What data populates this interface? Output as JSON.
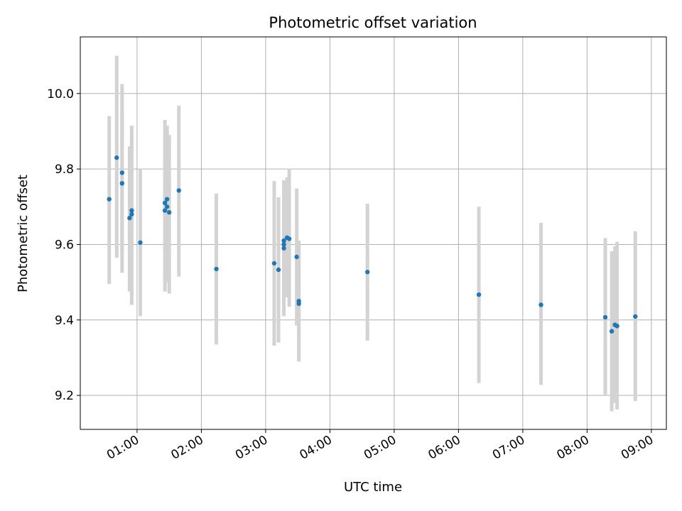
{
  "chart_data": {
    "type": "scatter",
    "title": "Photometric offset variation",
    "xlabel": "UTC time",
    "ylabel": "Photometric offset",
    "grid": true,
    "xlim": [
      "00:07",
      "09:14"
    ],
    "ylim": [
      9.11,
      10.15
    ],
    "x_ticks": [
      "01:00",
      "02:00",
      "03:00",
      "04:00",
      "05:00",
      "06:00",
      "07:00",
      "08:00",
      "09:00"
    ],
    "y_ticks": [
      "9.2",
      "9.4",
      "9.6",
      "9.8",
      "10.0"
    ],
    "marker_color": "#1f77b4",
    "errorbar_color": "#d3d3d3",
    "points": [
      {
        "t": "00:34",
        "y": 9.72,
        "lo": 9.495,
        "hi": 9.94
      },
      {
        "t": "00:41",
        "y": 9.83,
        "lo": 9.565,
        "hi": 10.1
      },
      {
        "t": "00:46",
        "y": 9.79,
        "lo": 9.575,
        "hi": 10.025
      },
      {
        "t": "00:46",
        "y": 9.762,
        "lo": 9.525,
        "hi": 9.96
      },
      {
        "t": "00:53",
        "y": 9.67,
        "lo": 9.475,
        "hi": 9.86
      },
      {
        "t": "00:55",
        "y": 9.69,
        "lo": 9.44,
        "hi": 9.915
      },
      {
        "t": "00:55",
        "y": 9.68,
        "lo": 9.47,
        "hi": 9.9
      },
      {
        "t": "01:03",
        "y": 9.605,
        "lo": 9.41,
        "hi": 9.8
      },
      {
        "t": "01:26",
        "y": 9.71,
        "lo": 9.475,
        "hi": 9.93
      },
      {
        "t": "01:26",
        "y": 9.69,
        "lo": 9.49,
        "hi": 9.905
      },
      {
        "t": "01:28",
        "y": 9.72,
        "lo": 9.52,
        "hi": 9.915
      },
      {
        "t": "01:28",
        "y": 9.7,
        "lo": 9.5,
        "hi": 9.9
      },
      {
        "t": "01:30",
        "y": 9.685,
        "lo": 9.47,
        "hi": 9.89
      },
      {
        "t": "01:39",
        "y": 9.743,
        "lo": 9.515,
        "hi": 9.968
      },
      {
        "t": "02:14",
        "y": 9.535,
        "lo": 9.335,
        "hi": 9.735
      },
      {
        "t": "03:08",
        "y": 9.55,
        "lo": 9.332,
        "hi": 9.768
      },
      {
        "t": "03:12",
        "y": 9.533,
        "lo": 9.34,
        "hi": 9.725
      },
      {
        "t": "03:17",
        "y": 9.61,
        "lo": 9.43,
        "hi": 9.77
      },
      {
        "t": "03:17",
        "y": 9.6,
        "lo": 9.42,
        "hi": 9.76
      },
      {
        "t": "03:17",
        "y": 9.59,
        "lo": 9.41,
        "hi": 9.755
      },
      {
        "t": "03:20",
        "y": 9.618,
        "lo": 9.46,
        "hi": 9.778
      },
      {
        "t": "03:22",
        "y": 9.615,
        "lo": 9.435,
        "hi": 9.8
      },
      {
        "t": "03:29",
        "y": 9.567,
        "lo": 9.385,
        "hi": 9.748
      },
      {
        "t": "03:31",
        "y": 9.45,
        "lo": 9.29,
        "hi": 9.61
      },
      {
        "t": "03:31",
        "y": 9.443,
        "lo": 9.29,
        "hi": 9.6
      },
      {
        "t": "04:35",
        "y": 9.527,
        "lo": 9.345,
        "hi": 9.708
      },
      {
        "t": "06:19",
        "y": 9.467,
        "lo": 9.233,
        "hi": 9.7
      },
      {
        "t": "07:17",
        "y": 9.44,
        "lo": 9.228,
        "hi": 9.657
      },
      {
        "t": "08:17",
        "y": 9.407,
        "lo": 9.2,
        "hi": 9.617
      },
      {
        "t": "08:23",
        "y": 9.37,
        "lo": 9.158,
        "hi": 9.582
      },
      {
        "t": "08:26",
        "y": 9.387,
        "lo": 9.18,
        "hi": 9.595
      },
      {
        "t": "08:28",
        "y": 9.384,
        "lo": 9.163,
        "hi": 9.607
      },
      {
        "t": "08:45",
        "y": 9.409,
        "lo": 9.185,
        "hi": 9.635
      }
    ]
  }
}
